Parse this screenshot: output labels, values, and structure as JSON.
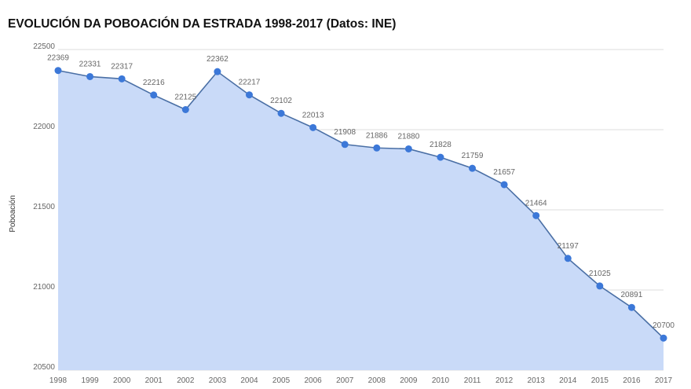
{
  "chart_data": {
    "type": "area",
    "title": "EVOLUCIÓN DA POBOACIÓN DA ESTRADA 1998-2017 (Datos: INE)",
    "xlabel": "",
    "ylabel": "Poboación",
    "ylim": [
      20500,
      22500
    ],
    "yticks": [
      20500,
      21000,
      21500,
      22000,
      22500
    ],
    "grid": true,
    "categories": [
      "1998",
      "1999",
      "2000",
      "2001",
      "2002",
      "2003",
      "2004",
      "2005",
      "2006",
      "2007",
      "2008",
      "2009",
      "2010",
      "2011",
      "2012",
      "2013",
      "2014",
      "2015",
      "2016",
      "2017"
    ],
    "series": [
      {
        "name": "Poboación",
        "color": "#3c78d8",
        "fill": "#c9daf8",
        "values": [
          22369,
          22331,
          22317,
          22216,
          22125,
          22362,
          22217,
          22102,
          22013,
          21908,
          21886,
          21880,
          21828,
          21759,
          21657,
          21464,
          21197,
          21025,
          20891,
          20700
        ]
      }
    ]
  }
}
